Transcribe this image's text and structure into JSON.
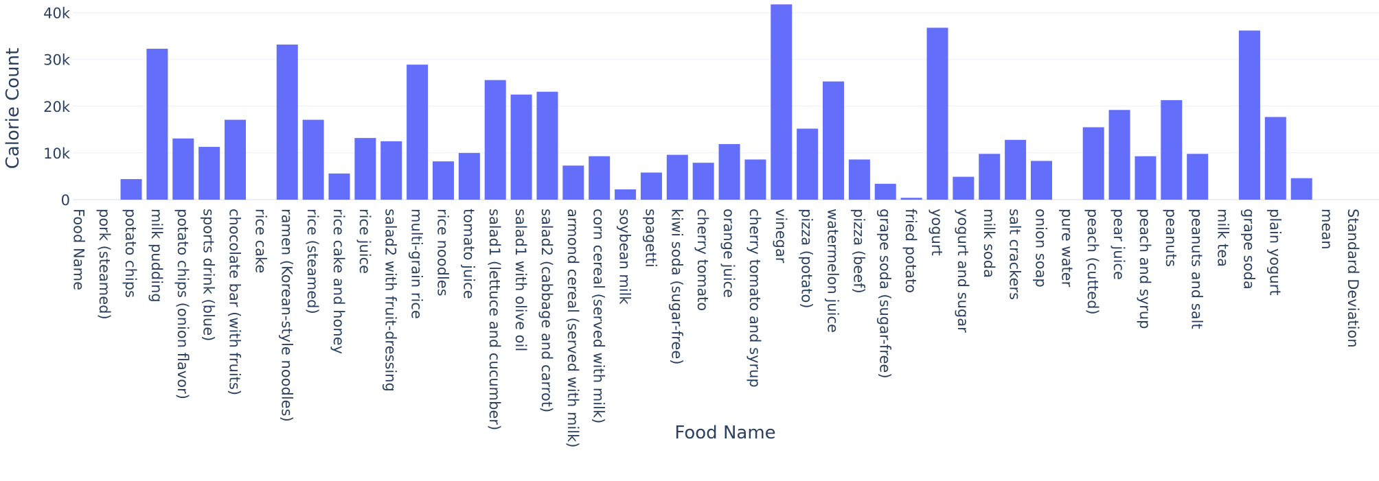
{
  "chart_data": {
    "type": "bar",
    "xlabel": "Food Name",
    "ylabel": "Calorie Count",
    "ylim": [
      0,
      42000
    ],
    "yticks": [
      0,
      10000,
      20000,
      30000,
      40000
    ],
    "ytick_labels": [
      "0",
      "10k",
      "20k",
      "30k",
      "40k"
    ],
    "grid": true,
    "bar_color": "#636efa",
    "categories": [
      "Food Name",
      "pork (steamed)",
      "potato chips",
      "milk pudding",
      "potato chips (onion  flavor)",
      "sports drink (blue)",
      "chocolate bar (with  fruits)",
      "rice cake",
      "ramen (Korean-style  noodles)",
      "rice (steamed)",
      "rice cake and honey",
      "rice juice",
      "salad2 with  fruit-dressing",
      "multi-grain rice",
      "rice noodles",
      "tomato juice",
      "salad1 (lettuce and  cucumber)",
      "salad1 with olive  oil",
      "salad2 (cabbage and  carrot)",
      "armond cereal  (served with milk)",
      "corn cereal (served  with milk)",
      "soybean milk",
      "spagetti",
      "kiwi soda  (sugar-free)",
      "cherry tomato",
      "orange juice",
      "cherry tomato and  syrup",
      "vinegar",
      "pizza (potato)",
      "watermelon juice",
      "pizza (beef)",
      "grape soda  (sugar-free)",
      "fried potato",
      "yogurt",
      "yogurt and sugar",
      "milk soda",
      "salt crackers",
      "onion soap",
      "pure water",
      "peach (cutted)",
      "pear juice",
      "peach and syrup",
      "peanuts",
      "peanuts and salt",
      "milk tea",
      "grape soda",
      "plain yogurt",
      "",
      "mean",
      "Standard Deviation"
    ],
    "values": [
      0,
      0,
      4400,
      32300,
      13100,
      11300,
      17100,
      0,
      33200,
      17100,
      5600,
      13200,
      12500,
      28900,
      8200,
      10000,
      25600,
      22500,
      23100,
      7300,
      9300,
      2200,
      5800,
      9600,
      7900,
      11900,
      8600,
      41800,
      15200,
      25300,
      8600,
      3400,
      400,
      36800,
      4900,
      9800,
      12800,
      8300,
      0,
      15500,
      19200,
      9300,
      21300,
      9800,
      0,
      36200,
      17700,
      4600,
      0,
      0
    ]
  }
}
